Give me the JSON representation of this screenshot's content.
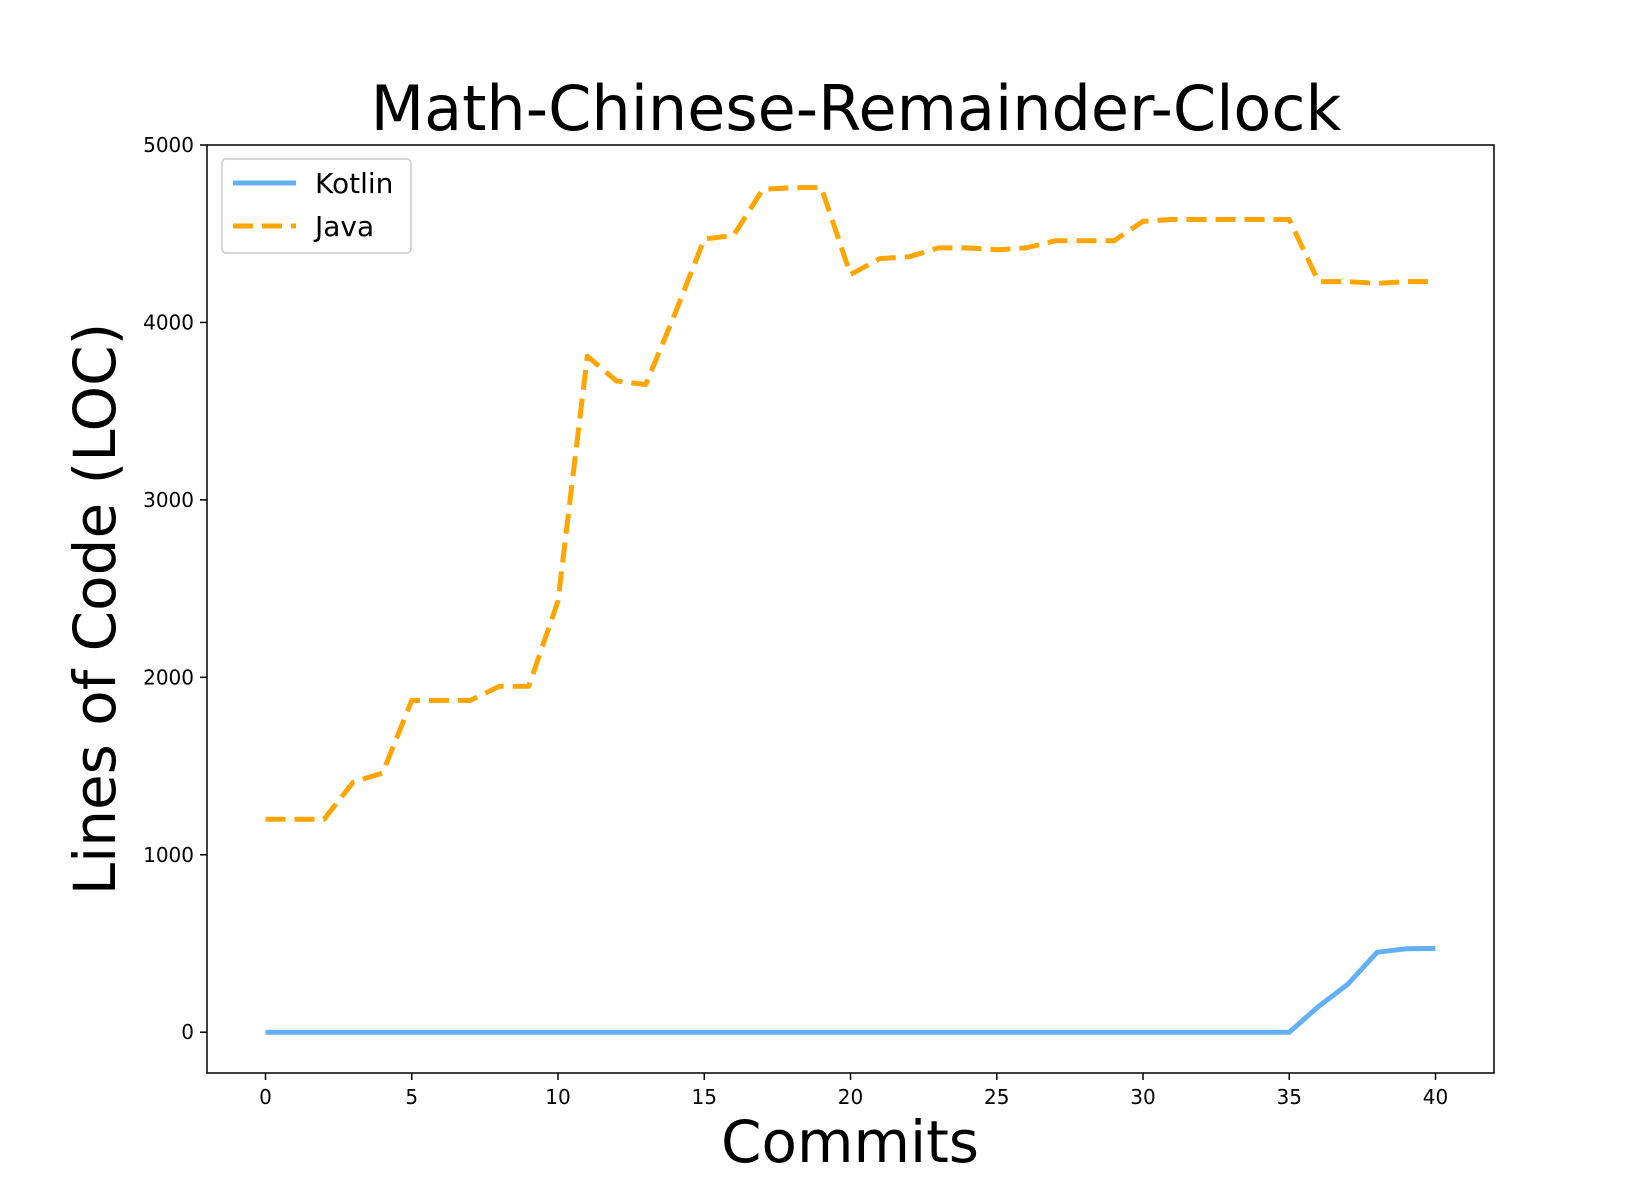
{
  "chart_data": {
    "type": "line",
    "title": "Math-Chinese-Remainder-Clock",
    "xlabel": "Commits",
    "ylabel": "Lines of Code (LOC)",
    "xlim": [
      -2,
      42
    ],
    "ylim": [
      -230,
      5000
    ],
    "xticks": [
      0,
      5,
      10,
      15,
      20,
      25,
      30,
      35,
      40
    ],
    "yticks": [
      0,
      1000,
      2000,
      3000,
      4000,
      5000
    ],
    "grid": false,
    "legend_position": "top-left",
    "x": [
      0,
      1,
      2,
      3,
      4,
      5,
      6,
      7,
      8,
      9,
      10,
      11,
      12,
      13,
      14,
      15,
      16,
      17,
      18,
      19,
      20,
      21,
      22,
      23,
      24,
      25,
      26,
      27,
      28,
      29,
      30,
      31,
      32,
      33,
      34,
      35,
      36,
      37,
      38,
      39,
      40
    ],
    "series": [
      {
        "name": "Kotlin",
        "color": "#64b0f5",
        "style": "solid",
        "values": [
          0,
          0,
          0,
          0,
          0,
          0,
          0,
          0,
          0,
          0,
          0,
          0,
          0,
          0,
          0,
          0,
          0,
          0,
          0,
          0,
          0,
          0,
          0,
          0,
          0,
          0,
          0,
          0,
          0,
          0,
          0,
          0,
          0,
          0,
          0,
          0,
          145,
          270,
          450,
          470,
          472
        ]
      },
      {
        "name": "Java",
        "color": "#ffa500",
        "style": "dashed",
        "values": [
          1200,
          1200,
          1200,
          1410,
          1460,
          1870,
          1870,
          1870,
          1950,
          1950,
          2430,
          3810,
          3670,
          3650,
          4050,
          4470,
          4490,
          4750,
          4760,
          4760,
          4270,
          4360,
          4370,
          4420,
          4420,
          4410,
          4420,
          4460,
          4460,
          4460,
          4570,
          4580,
          4580,
          4580,
          4580,
          4580,
          4230,
          4230,
          4220,
          4230,
          4230
        ]
      }
    ]
  }
}
